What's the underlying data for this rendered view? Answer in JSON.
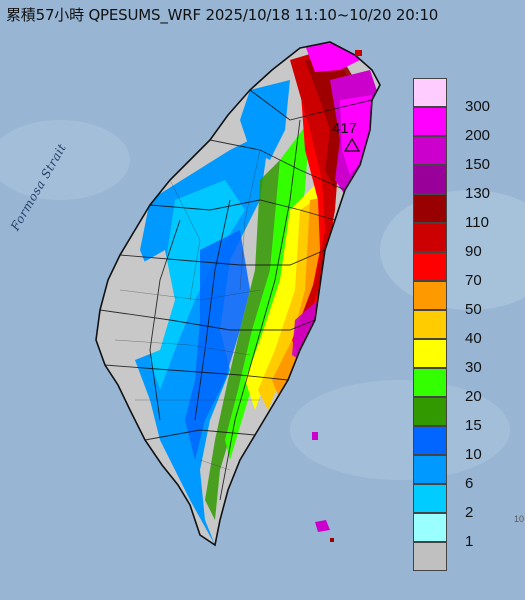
{
  "title": "累積57小時 QPESUMS_WRF 2025/10/18 11:10~10/20 20:10",
  "sea_label": "Formosa Strait",
  "peak_label": "417",
  "edge_label": "10",
  "colors": {
    "sea": "#8fb0d0",
    "land_grey": "#c8c8c8",
    "boundary": "#111111"
  },
  "legend": {
    "levels": [
      {
        "label": "300",
        "color": "#ffccff"
      },
      {
        "label": "200",
        "color": "#ff00ff"
      },
      {
        "label": "150",
        "color": "#cc00cc"
      },
      {
        "label": "130",
        "color": "#990099"
      },
      {
        "label": "110",
        "color": "#990000"
      },
      {
        "label": "90",
        "color": "#cc0000"
      },
      {
        "label": "70",
        "color": "#ff0000"
      },
      {
        "label": "50",
        "color": "#ff9900"
      },
      {
        "label": "40",
        "color": "#ffcc00"
      },
      {
        "label": "30",
        "color": "#ffff00"
      },
      {
        "label": "20",
        "color": "#33ff00"
      },
      {
        "label": "15",
        "color": "#339900"
      },
      {
        "label": "10",
        "color": "#0066ff"
      },
      {
        "label": "6",
        "color": "#0099ff"
      },
      {
        "label": "2",
        "color": "#00ccff"
      },
      {
        "label": "1",
        "color": "#99ffff"
      },
      {
        "label": "",
        "color": "#c0c0c0"
      }
    ]
  }
}
